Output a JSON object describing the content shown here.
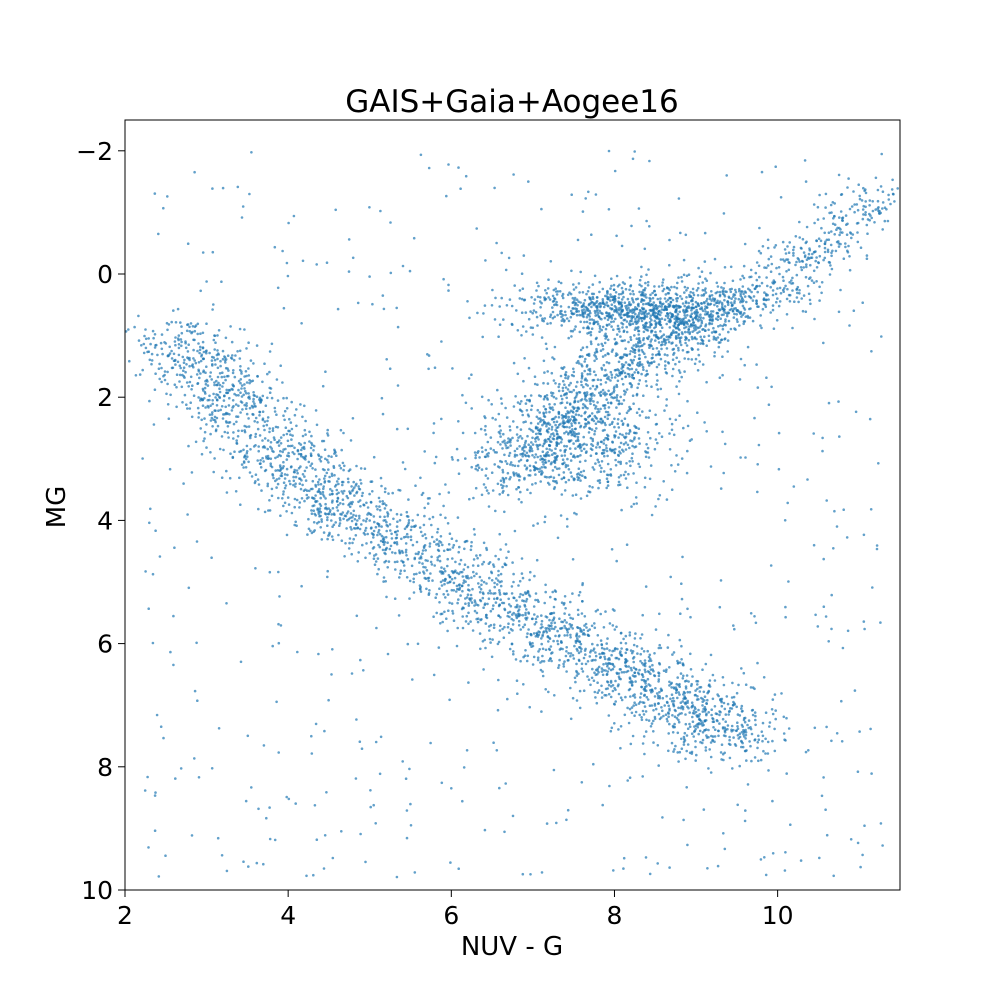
{
  "chart_data": {
    "type": "scatter",
    "title": "GAIS+Gaia+Aogee16",
    "xlabel": "NUV - G",
    "ylabel": "MG",
    "xlim": [
      2,
      11.5
    ],
    "ylim": [
      10,
      -2.5
    ],
    "y_inverted": true,
    "grid": false,
    "legend": "none",
    "point_color": "#1f77b4",
    "x_ticks": [
      2,
      4,
      6,
      8,
      10
    ],
    "x_tick_labels": [
      "2",
      "4",
      "6",
      "8",
      "10"
    ],
    "y_ticks": [
      -2,
      0,
      2,
      4,
      6,
      8,
      10
    ],
    "y_tick_labels": [
      "−2",
      "0",
      "2",
      "4",
      "6",
      "8",
      "10"
    ],
    "series": [
      {
        "point_density_regions": [
          {
            "feature": "main sequence",
            "path": [
              [
                2.6,
                1.0
              ],
              [
                3.2,
                1.8
              ],
              [
                3.8,
                2.8
              ],
              [
                4.5,
                3.7
              ],
              [
                5.5,
                4.4
              ],
              [
                6.5,
                5.3
              ],
              [
                7.5,
                6.0
              ],
              [
                8.3,
                6.5
              ],
              [
                9.0,
                7.1
              ],
              [
                9.6,
                7.6
              ]
            ],
            "width": 0.45,
            "count": 2600
          },
          {
            "feature": "red clump",
            "center": [
              8.3,
              0.55
            ],
            "spread": [
              0.75,
              0.22
            ],
            "count": 900
          },
          {
            "feature": "red giant branch",
            "path": [
              [
                9.0,
                0.7
              ],
              [
                9.8,
                0.3
              ],
              [
                10.5,
                -0.4
              ],
              [
                11.2,
                -1.4
              ]
            ],
            "width": 0.35,
            "count": 450
          },
          {
            "feature": "subgiant branch",
            "path": [
              [
                6.6,
                3.3
              ],
              [
                7.2,
                2.6
              ],
              [
                7.6,
                2.0
              ],
              [
                8.0,
                1.6
              ],
              [
                8.5,
                1.1
              ],
              [
                8.9,
                0.8
              ]
            ],
            "width": 0.45,
            "count": 1000
          },
          {
            "feature": "giant lower region",
            "center": [
              7.6,
              2.8
            ],
            "spread": [
              0.6,
              0.45
            ],
            "count": 500
          },
          {
            "feature": "background scatter",
            "xrange": [
              2.2,
              11.3
            ],
            "yrange": [
              -2.0,
              9.8
            ],
            "count": 650
          }
        ]
      }
    ]
  }
}
